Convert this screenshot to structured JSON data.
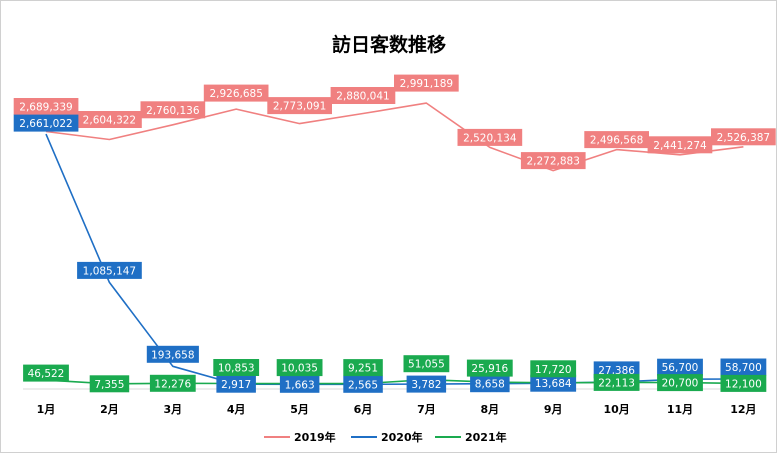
{
  "chart_data": {
    "type": "line",
    "title": "訪日客数推移",
    "categories": [
      "1月",
      "2月",
      "3月",
      "4月",
      "5月",
      "6月",
      "7月",
      "8月",
      "9月",
      "10月",
      "11月",
      "12月"
    ],
    "series": [
      {
        "name": "2019年",
        "color": "#f08080",
        "values": [
          2689339,
          2604322,
          2760136,
          2926685,
          2773091,
          2880041,
          2991189,
          2520134,
          2272883,
          2496568,
          2441274,
          2526387
        ],
        "labels": [
          "2,689,339",
          "2,604,322",
          "2,760,136",
          "2,926,685",
          "2,773,091",
          "2,880,041",
          "2,991,189",
          "2,520,134",
          "2,272,883",
          "2,496,568",
          "2,441,274",
          "2,526,387"
        ]
      },
      {
        "name": "2020年",
        "color": "#1f6fc5",
        "values": [
          2661022,
          1085147,
          193658,
          2917,
          1663,
          2565,
          3782,
          8658,
          13684,
          27386,
          56700,
          58700
        ],
        "labels": [
          "2,661,022",
          "1,085,147",
          "193,658",
          "2,917",
          "1,663",
          "2,565",
          "3,782",
          "8,658",
          "13,684",
          "27,386",
          "56,700",
          "58,700"
        ]
      },
      {
        "name": "2021年",
        "color": "#1aaa4f",
        "values": [
          46522,
          7355,
          12276,
          10853,
          10035,
          9251,
          51055,
          25916,
          17720,
          22113,
          20700,
          12100
        ],
        "labels": [
          "46,522",
          "7,355",
          "12,276",
          "10,853",
          "10,035",
          "9,251",
          "51,055",
          "25,916",
          "17,720",
          "22,113",
          "20,700",
          "12,100"
        ]
      }
    ],
    "ylim": [
      0,
      3300000
    ],
    "grid": false,
    "legend": "bottom"
  }
}
